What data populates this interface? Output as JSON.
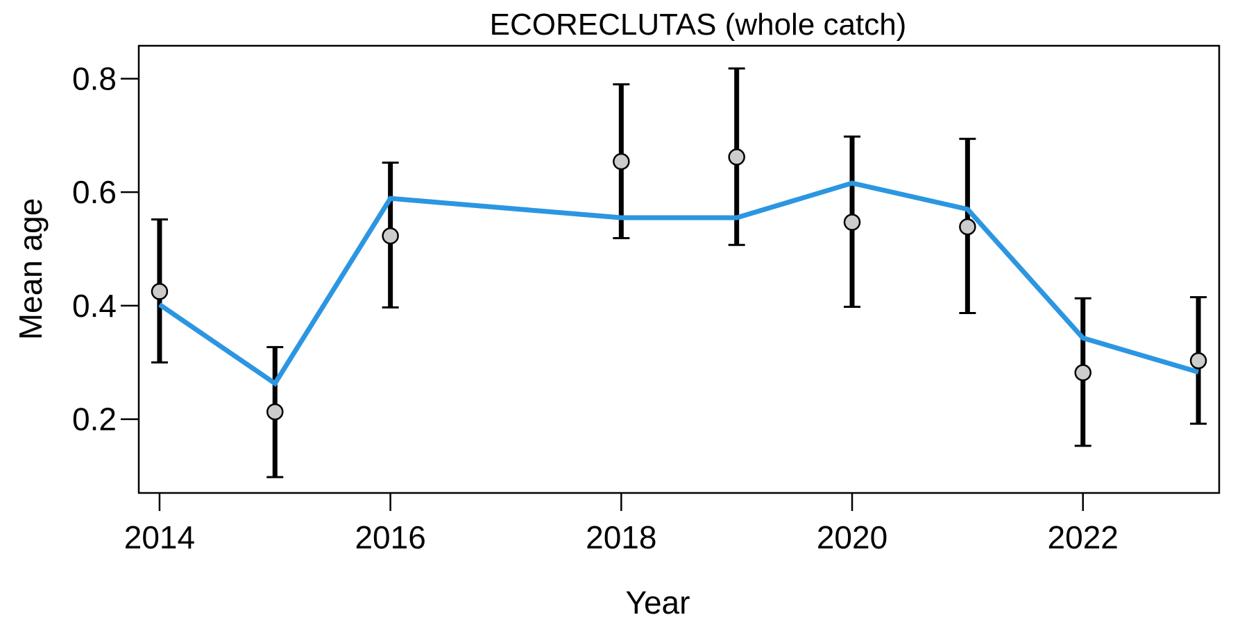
{
  "chart_data": {
    "type": "line",
    "title": "ECORECLUTAS (whole catch)",
    "xlabel": "Year",
    "ylabel": "Mean age",
    "xlim": [
      2013.82,
      2023.18
    ],
    "ylim": [
      0.07,
      0.858
    ],
    "x_ticks": [
      2014,
      2016,
      2018,
      2020,
      2022
    ],
    "y_ticks": [
      0.2,
      0.4,
      0.6,
      0.8
    ],
    "y_tick_labels": [
      "0.2",
      "0.4",
      "0.6",
      "0.8"
    ],
    "grid": false,
    "legend": "none",
    "x": [
      2014,
      2015,
      2016,
      2018,
      2019,
      2020,
      2021,
      2022,
      2023
    ],
    "observed": {
      "values": [
        0.425,
        0.213,
        0.523,
        0.654,
        0.662,
        0.547,
        0.539,
        0.282,
        0.303
      ],
      "lower": [
        0.3,
        0.098,
        0.397,
        0.519,
        0.507,
        0.398,
        0.387,
        0.153,
        0.192
      ],
      "upper": [
        0.552,
        0.327,
        0.652,
        0.79,
        0.818,
        0.698,
        0.694,
        0.413,
        0.415
      ],
      "marker_fill": "#cccccc",
      "bar_color": "#000000"
    },
    "expected": {
      "values": [
        0.402,
        0.263,
        0.589,
        0.555,
        0.555,
        0.616,
        0.57,
        0.343,
        0.283
      ],
      "color": "#2b96e1"
    }
  }
}
